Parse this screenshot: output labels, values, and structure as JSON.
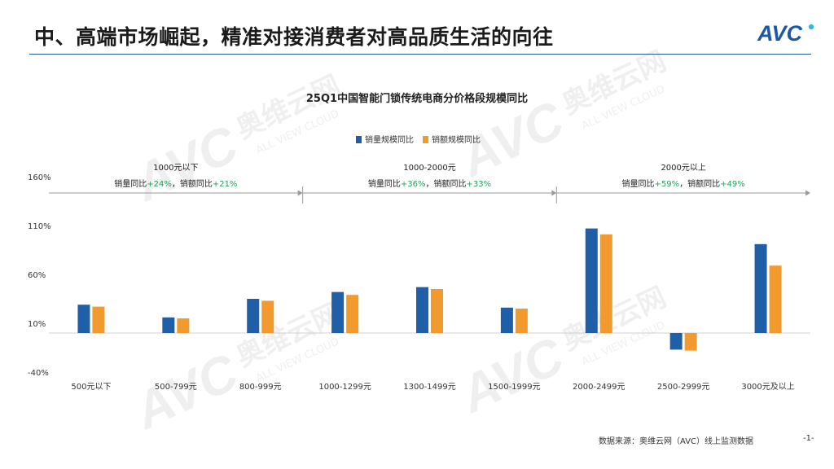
{
  "page": {
    "title": "中、高端市场崛起，精准对接消费者对高品质生活的向往",
    "logo_text": "AVC",
    "source": "数据来源：奥维云网（AVC）线上监测数据",
    "page_number": "-1-",
    "watermark_cn": "奥维云网",
    "watermark_en": "ALL VIEW CLOUD",
    "watermark_logo": "AVC"
  },
  "chart_data": {
    "type": "bar",
    "title": "25Q1中国智能门锁传统电商分价格段规模同比",
    "categories": [
      "500元以下",
      "500-799元",
      "800-999元",
      "1000-1299元",
      "1300-1499元",
      "1500-1999元",
      "2000-2499元",
      "2500-2999元",
      "3000元及以上"
    ],
    "series": [
      {
        "name": "销量规模同比",
        "color": "#1f5fa8",
        "values": [
          29,
          16,
          35,
          42,
          47,
          26,
          107,
          -17,
          91
        ]
      },
      {
        "name": "销额规模同比",
        "color": "#f29a2e",
        "values": [
          27,
          15,
          33,
          39,
          45,
          25,
          101,
          -18,
          69
        ]
      }
    ],
    "y_ticks": [
      "160%",
      "110%",
      "60%",
      "10%",
      "-40%"
    ],
    "ylim": [
      -40,
      160
    ],
    "legend_position": "top-center",
    "grid": false,
    "groups": [
      {
        "label": "1000元以下",
        "stat_prefix": "销量同比",
        "stat_a": "+24%",
        "stat_sep": "，销额同比",
        "stat_b": "+21%",
        "from": 0,
        "to": 2
      },
      {
        "label": "1000-2000元",
        "stat_prefix": "销量同比",
        "stat_a": "+36%",
        "stat_sep": "，销额同比",
        "stat_b": "+33%",
        "from": 3,
        "to": 5
      },
      {
        "label": "2000元以上",
        "stat_prefix": "销量同比",
        "stat_a": "+59%",
        "stat_sep": "，销额同比",
        "stat_b": "+49%",
        "from": 6,
        "to": 8
      }
    ],
    "stat_highlight_color": "#22a35a"
  }
}
